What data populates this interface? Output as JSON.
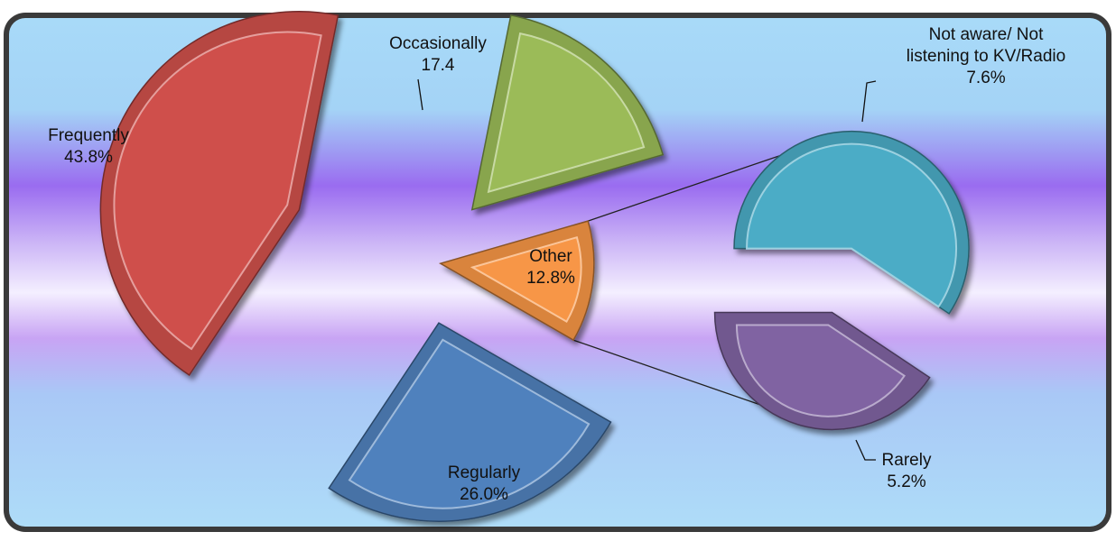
{
  "chart_data": {
    "type": "pie",
    "subtype": "pie-of-pie (exploded, 3D bevel)",
    "title": "",
    "main_slices": [
      {
        "label": "Frequently",
        "value_text": "43.8%",
        "value": 43.8,
        "color": "#cf504c"
      },
      {
        "label": "Occasionally",
        "value_text": "17.4",
        "value": 17.4,
        "color": "#9bbb59"
      },
      {
        "label": "Other",
        "value_text": "12.8%",
        "value": 12.8,
        "color": "#f79646"
      },
      {
        "label": "Regularly",
        "value_text": "26.0%",
        "value": 26.0,
        "color": "#4f81bd"
      }
    ],
    "secondary_slices": [
      {
        "label": "Not aware/ Not listening to KV/Radio",
        "label_lines": [
          "Not aware/ Not",
          "listening to KV/Radio"
        ],
        "value_text": "7.6%",
        "value": 7.6,
        "color": "#4bacc6"
      },
      {
        "label": "Rarely",
        "value_text": "5.2%",
        "value": 5.2,
        "color": "#8064a2"
      }
    ],
    "legend": "none",
    "background": {
      "top": "#a6d8f7",
      "band": "#9565ef",
      "middle": "#f2ecff",
      "bottom": "#a6d8f7",
      "frame": "#2a2a2a"
    }
  }
}
